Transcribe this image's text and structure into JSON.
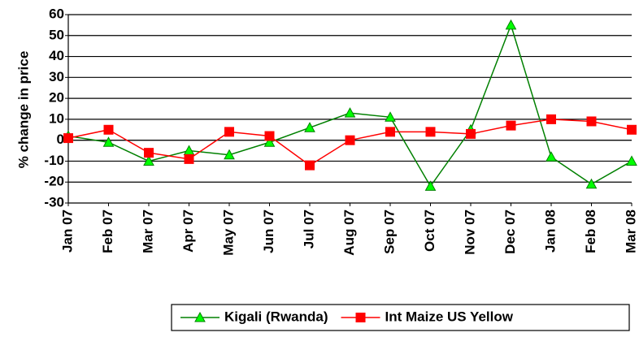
{
  "chart_data": {
    "type": "line",
    "y_label": "% change in price",
    "categories": [
      "Jan 07",
      "Feb 07",
      "Mar 07",
      "Apr 07",
      "May 07",
      "Jun 07",
      "Jul 07",
      "Aug 07",
      "Sep 07",
      "Oct 07",
      "Nov 07",
      "Dec 07",
      "Jan 08",
      "Feb 08",
      "Mar 08"
    ],
    "series": [
      {
        "name": "Kigali (Rwanda)",
        "color": "#00ff00",
        "line_color": "#008000",
        "marker": "triangle",
        "values": [
          2,
          -1,
          -10,
          -5,
          -7,
          -1,
          6,
          13,
          11,
          -22,
          5,
          55,
          -8,
          -21,
          -10
        ]
      },
      {
        "name": "Int Maize US Yellow",
        "color": "#ff0000",
        "line_color": "#ff0000",
        "marker": "square",
        "values": [
          1,
          5,
          -6,
          -9,
          4,
          2,
          -12,
          0,
          4,
          4,
          3,
          7,
          10,
          9,
          5
        ]
      }
    ],
    "ylim": [
      -30,
      60
    ],
    "yticks": [
      -30,
      -20,
      -10,
      0,
      10,
      20,
      30,
      40,
      50,
      60
    ],
    "grid": true,
    "legend": "bottom"
  }
}
